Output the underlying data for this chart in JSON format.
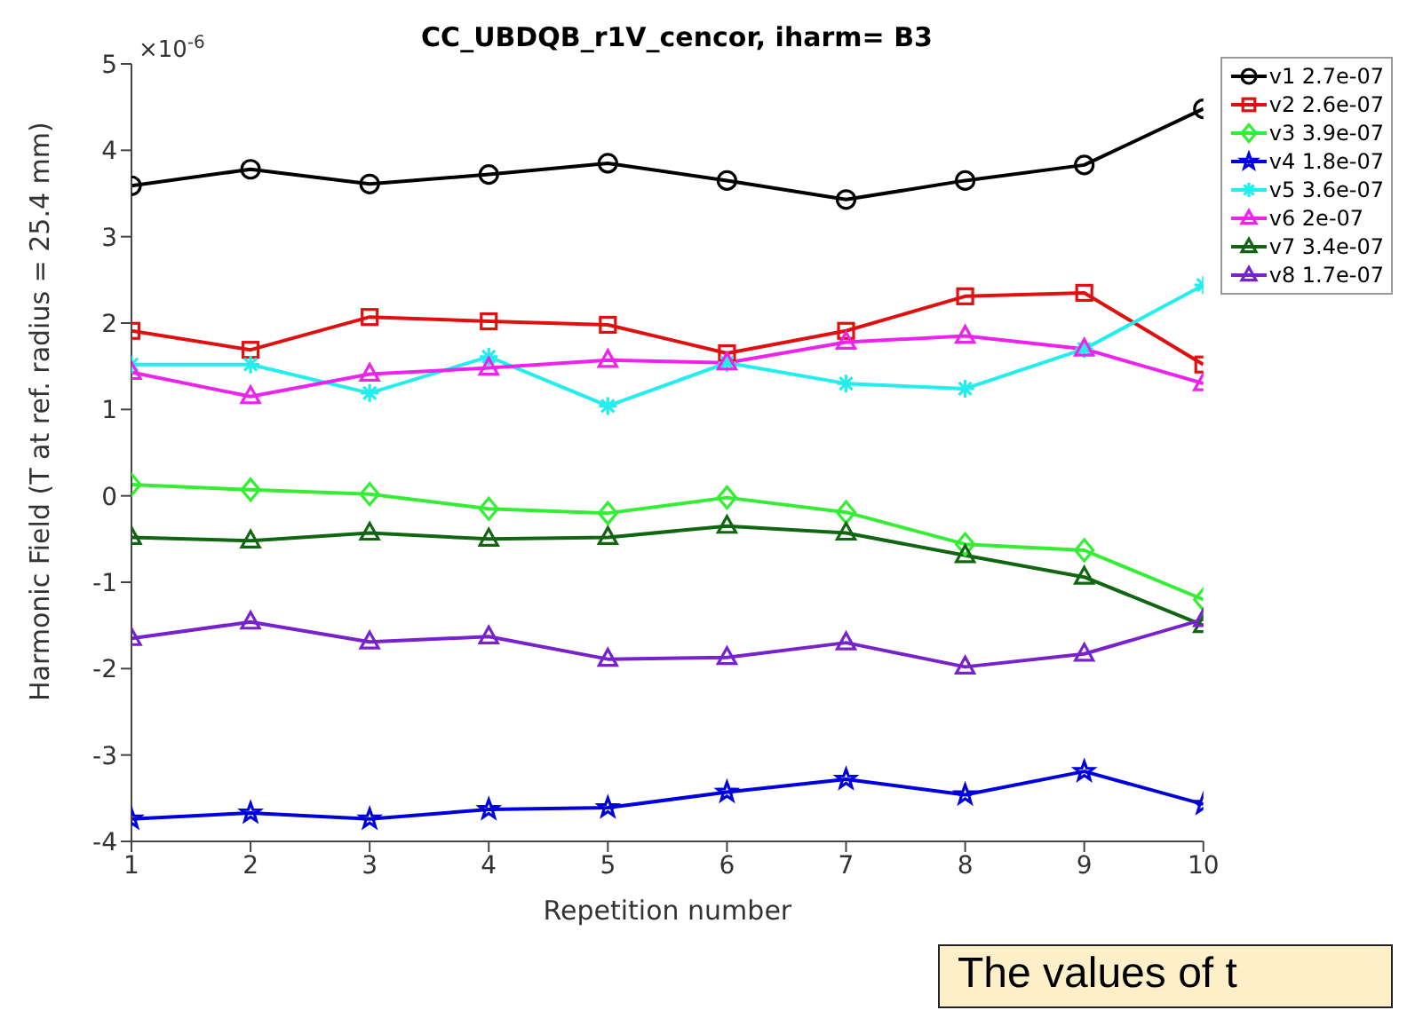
{
  "chart_data": {
    "type": "line",
    "title": "CC_UBDQB_r1V_cencor, iharm= B3",
    "xlabel": "Repetition number",
    "ylabel": "Harmonic Field (T at ref. radius = 25.4 mm)",
    "x": [
      1,
      2,
      3,
      4,
      5,
      6,
      7,
      8,
      9,
      10
    ],
    "series": [
      {
        "name": "v1 2.7e-07",
        "color": "#000000",
        "marker": "circle",
        "values": [
          3.59,
          3.78,
          3.61,
          3.72,
          3.85,
          3.65,
          3.43,
          3.65,
          3.83,
          4.48
        ]
      },
      {
        "name": "v2 2.6e-07",
        "color": "#e01010",
        "marker": "square",
        "values": [
          1.91,
          1.69,
          2.07,
          2.02,
          1.98,
          1.65,
          1.91,
          2.31,
          2.35,
          1.52
        ]
      },
      {
        "name": "v3 3.9e-07",
        "color": "#33ee33",
        "marker": "diamond",
        "values": [
          0.13,
          0.07,
          0.02,
          -0.15,
          -0.2,
          -0.02,
          -0.19,
          -0.56,
          -0.63,
          -1.2
        ]
      },
      {
        "name": "v4 1.8e-07",
        "color": "#0000dd",
        "marker": "star",
        "values": [
          -3.74,
          -3.67,
          -3.74,
          -3.63,
          -3.61,
          -3.43,
          -3.28,
          -3.46,
          -3.19,
          -3.57
        ]
      },
      {
        "name": "v5 3.6e-07",
        "color": "#22eeee",
        "marker": "cross",
        "values": [
          1.52,
          1.52,
          1.19,
          1.61,
          1.04,
          1.54,
          1.3,
          1.24,
          1.7,
          2.44
        ]
      },
      {
        "name": "v6 2e-07",
        "color": "#ee22ee",
        "marker": "triangle",
        "values": [
          1.43,
          1.15,
          1.41,
          1.48,
          1.57,
          1.54,
          1.78,
          1.85,
          1.7,
          1.3
        ]
      },
      {
        "name": "v7 3.4e-07",
        "color": "#116611",
        "marker": "triangle",
        "values": [
          -0.48,
          -0.52,
          -0.43,
          -0.5,
          -0.48,
          -0.35,
          -0.43,
          -0.69,
          -0.94,
          -1.5
        ]
      },
      {
        "name": "v8 1.7e-07",
        "color": "#7722cc",
        "marker": "triangle",
        "values": [
          -1.65,
          -1.46,
          -1.69,
          -1.63,
          -1.89,
          -1.87,
          -1.7,
          -1.98,
          -1.83,
          -1.43
        ]
      }
    ],
    "xlim": [
      1,
      10
    ],
    "xticks": [
      1,
      2,
      3,
      4,
      5,
      6,
      7,
      8,
      9,
      10
    ],
    "ylim": [
      -4,
      5
    ],
    "yticks": [
      -4,
      -3,
      -2,
      -1,
      0,
      1,
      2,
      3,
      4,
      5
    ],
    "grid": false,
    "legend": "top right",
    "line_style": "solid",
    "annotations": [
      "×10$^{-6}$",
      "The values of t"
    ]
  }
}
